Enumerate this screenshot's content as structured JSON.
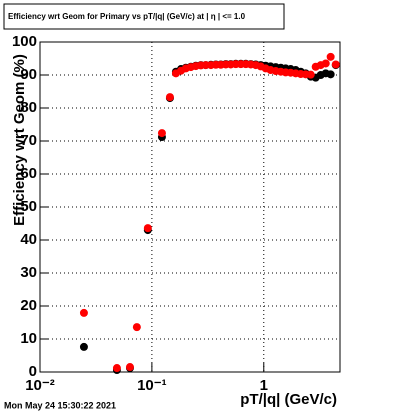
{
  "chart_data": {
    "type": "scatter",
    "title": "Efficiency wrt Geom for Primary vs pT/|q| (GeV/c) at | η | <= 1.0",
    "xlabel": "pT/|q| (GeV/c)",
    "ylabel": "Efficiency wrt Geom (%)",
    "footer": "Mon May 24 15:30:22 2021",
    "x_log": true,
    "grid": true,
    "xlim": [
      0.01,
      4.8
    ],
    "ylim": [
      0,
      100
    ],
    "xticks": [
      {
        "value": 0.01,
        "label": "10⁻²"
      },
      {
        "value": 0.1,
        "label": "10⁻¹"
      },
      1
    ],
    "yticks": [
      0,
      10,
      20,
      30,
      40,
      50,
      60,
      70,
      80,
      90,
      100
    ],
    "x": [
      0.0247,
      0.0487,
      0.0637,
      0.0734,
      0.092,
      0.123,
      0.145,
      0.164,
      0.182,
      0.201,
      0.223,
      0.247,
      0.274,
      0.303,
      0.337,
      0.373,
      0.413,
      0.458,
      0.507,
      0.562,
      0.624,
      0.691,
      0.766,
      0.849,
      0.94,
      1.04,
      1.15,
      1.28,
      1.42,
      1.57,
      1.74,
      1.93,
      2.14,
      2.37,
      2.63,
      2.91,
      3.23,
      3.58,
      3.96,
      4.4
    ],
    "series": [
      {
        "name": "Black",
        "color": "#000000",
        "values": [
          7.6,
          0.6,
          1.2,
          null,
          43,
          71.2,
          83,
          91,
          91.8,
          92.2,
          92.5,
          92.8,
          93,
          93,
          93.1,
          93.2,
          93.2,
          93.3,
          93.3,
          93.4,
          93.4,
          93.4,
          93.3,
          93.2,
          93,
          92.8,
          92.6,
          92.4,
          92.2,
          92,
          91.8,
          91.5,
          91,
          90.5,
          89.5,
          89.2,
          90,
          90.5,
          90.2,
          93
        ]
      },
      {
        "name": "Red",
        "color": "#ff0000",
        "values": [
          17.9,
          1.2,
          1.5,
          13.6,
          43.6,
          72.4,
          83.3,
          90.5,
          91.3,
          92,
          92.4,
          92.7,
          92.9,
          93,
          93,
          93.1,
          93.1,
          93.2,
          93.2,
          93.3,
          93.3,
          93.3,
          93.2,
          93,
          92.6,
          92,
          91.5,
          91.2,
          91,
          90.8,
          90.7,
          90.5,
          90.3,
          90.2,
          90.1,
          92.5,
          93,
          93.5,
          95.5,
          93.2
        ]
      }
    ]
  }
}
